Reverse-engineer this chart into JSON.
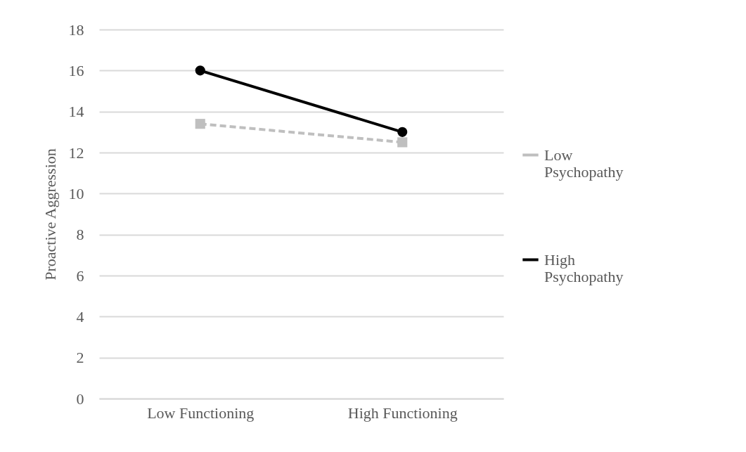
{
  "chart_data": {
    "type": "line",
    "ylabel": "Proactive Aggression",
    "categories": [
      "Low Functioning",
      "High Functioning"
    ],
    "series": [
      {
        "name": "Low Psychopathy",
        "color": "#bfbfbf",
        "values": [
          13.4,
          12.5
        ],
        "marker": "square",
        "line_style": "dashed"
      },
      {
        "name": "High Psychopathy",
        "color": "#000000",
        "values": [
          16.0,
          13.0
        ],
        "marker": "circle",
        "line_style": "solid"
      }
    ],
    "ylim": [
      0,
      18
    ],
    "yticks": [
      0,
      2,
      4,
      6,
      8,
      10,
      12,
      14,
      16,
      18
    ],
    "grid": "y",
    "legend": "right"
  }
}
